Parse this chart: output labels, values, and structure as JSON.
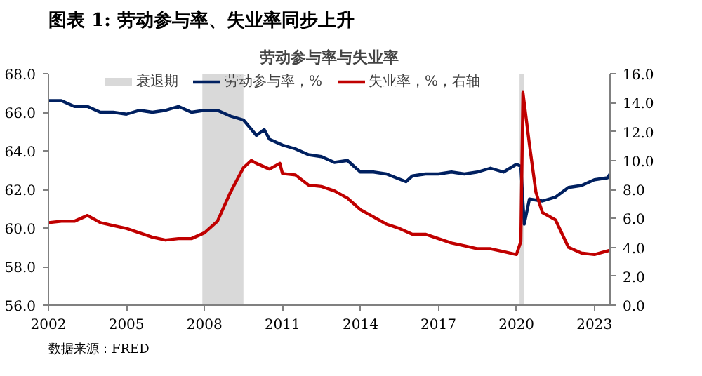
{
  "chart_data": {
    "type": "line",
    "title": "图表 1: 劳动参与率、失业率同步上升",
    "subtitle": "劳动参与率与失业率",
    "annotations": [
      "数据来源：FRED"
    ],
    "xlim": [
      2002,
      2023.6
    ],
    "xticks": [
      2002,
      2005,
      2008,
      2011,
      2014,
      2017,
      2020,
      2023
    ],
    "ylim": [
      56,
      68
    ],
    "yticks": [
      {
        "value": 56,
        "label": "56.0"
      },
      {
        "value": 58,
        "label": "58.0"
      },
      {
        "value": 60,
        "label": "60.0"
      },
      {
        "value": 62,
        "label": "62.0"
      },
      {
        "value": 64,
        "label": "64.0"
      },
      {
        "value": 66,
        "label": "66.0"
      },
      {
        "value": 68,
        "label": "68.0"
      }
    ],
    "y2lim": [
      0,
      16
    ],
    "y2ticks": [
      {
        "value": 0,
        "label": "0.0"
      },
      {
        "value": 2,
        "label": "2.0"
      },
      {
        "value": 4,
        "label": "4.0"
      },
      {
        "value": 6,
        "label": "6.0"
      },
      {
        "value": 8,
        "label": "8.0"
      },
      {
        "value": 10,
        "label": "10.0"
      },
      {
        "value": 12,
        "label": "12.0"
      },
      {
        "value": 14,
        "label": "14.0"
      },
      {
        "value": 16,
        "label": "16.0"
      }
    ],
    "bands": [
      {
        "axis": "x",
        "from": 2007.92,
        "to": 2009.5,
        "label": "衰退期",
        "color": "#d9d9d9"
      },
      {
        "axis": "x",
        "from": 2020.12,
        "to": 2020.3,
        "color": "#d9d9d9"
      }
    ],
    "legend": "top",
    "grid": false,
    "series": [
      {
        "name": "劳动参与率，%",
        "color": "#002060",
        "x": [
          2002,
          2002.5,
          2003,
          2003.5,
          2004,
          2004.5,
          2005,
          2005.5,
          2006,
          2006.5,
          2007,
          2007.5,
          2008,
          2008.5,
          2009,
          2009.5,
          2010,
          2010.3,
          2010.5,
          2011,
          2011.5,
          2012,
          2012.5,
          2013,
          2013.5,
          2014,
          2014.5,
          2015,
          2015.75,
          2016,
          2016.5,
          2017,
          2017.5,
          2018,
          2018.5,
          2019,
          2019.5,
          2020,
          2020.17,
          2020.3,
          2020.5,
          2021,
          2021.5,
          2022,
          2022.5,
          2023,
          2023.5,
          2023.6
        ],
        "values": [
          66.6,
          66.6,
          66.3,
          66.3,
          66.0,
          66.0,
          65.9,
          66.1,
          66.0,
          66.1,
          66.3,
          66.0,
          66.1,
          66.1,
          65.8,
          65.6,
          64.8,
          65.1,
          64.6,
          64.3,
          64.1,
          63.8,
          63.7,
          63.4,
          63.5,
          62.9,
          62.9,
          62.8,
          62.4,
          62.7,
          62.8,
          62.8,
          62.9,
          62.8,
          62.9,
          63.1,
          62.9,
          63.3,
          63.2,
          60.2,
          61.5,
          61.4,
          61.6,
          62.1,
          62.2,
          62.5,
          62.6,
          62.8
        ]
      },
      {
        "name": "失业率，%，右轴",
        "color": "#c00000",
        "axis": "y2",
        "x": [
          2002,
          2002.5,
          2003,
          2003.5,
          2004,
          2004.5,
          2005,
          2005.5,
          2006,
          2006.5,
          2007,
          2007.5,
          2008,
          2008.5,
          2009,
          2009.5,
          2009.8,
          2010,
          2010.5,
          2010.9,
          2011,
          2011.5,
          2012,
          2012.5,
          2013,
          2013.5,
          2014,
          2014.5,
          2015,
          2015.5,
          2016,
          2016.5,
          2017,
          2017.5,
          2018,
          2018.5,
          2019,
          2019.5,
          2020,
          2020.17,
          2020.25,
          2020.5,
          2020.75,
          2021,
          2021.5,
          2022,
          2022.5,
          2023,
          2023.6
        ],
        "values": [
          5.7,
          5.8,
          5.8,
          6.2,
          5.7,
          5.5,
          5.3,
          5.0,
          4.7,
          4.5,
          4.6,
          4.6,
          5.0,
          5.8,
          7.8,
          9.5,
          10.0,
          9.8,
          9.4,
          9.8,
          9.1,
          9.0,
          8.3,
          8.2,
          7.9,
          7.4,
          6.6,
          6.1,
          5.6,
          5.3,
          4.9,
          4.9,
          4.6,
          4.3,
          4.1,
          3.9,
          3.9,
          3.7,
          3.5,
          4.4,
          14.7,
          11.1,
          7.8,
          6.4,
          5.9,
          4.0,
          3.6,
          3.5,
          3.8
        ]
      }
    ]
  }
}
